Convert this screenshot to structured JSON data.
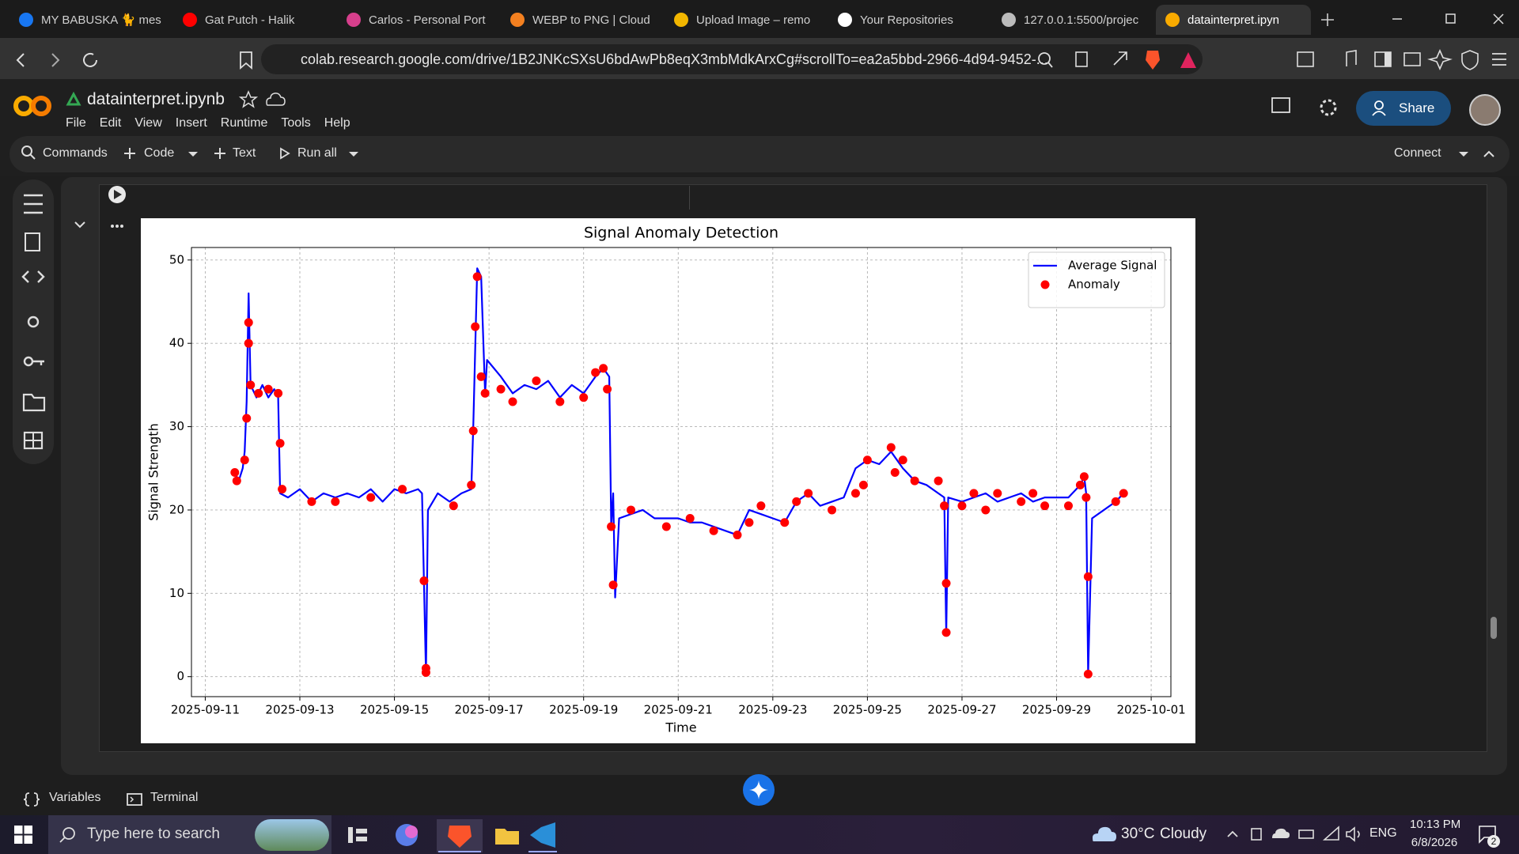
{
  "browser": {
    "tabs": [
      "MY BABUSKA 🐈 mes",
      "Gat Putch - Halik",
      "Carlos - Personal Port",
      "WEBP to PNG | Cloud",
      "Upload Image – remo",
      "Your Repositories",
      "127.0.0.1:5500/projec",
      "datainterpret.ipyn"
    ],
    "url": "colab.research.google.com/drive/1B2JNKcSXsU6bdAwPb8eqX3mbMdkArxCg#scrollTo=ea2a5bbd-2966-4d94-9452-..."
  },
  "notebook": {
    "title": "datainterpret.ipynb",
    "menus": [
      "File",
      "Edit",
      "View",
      "Insert",
      "Runtime",
      "Tools",
      "Help"
    ],
    "toolbar": {
      "commands": "Commands",
      "code": "Code",
      "text": "Text",
      "run_all": "Run all",
      "connect": "Connect"
    },
    "share": "Share",
    "bottom": {
      "variables": "Variables",
      "terminal": "Terminal"
    }
  },
  "taskbar": {
    "search": "Type here to search",
    "temperature": "30°C",
    "weather": "Cloudy",
    "language": "ENG",
    "time": "10:13 PM",
    "date": "6/8/2026",
    "notifications": "2"
  },
  "chart_data": {
    "type": "line",
    "title": "Signal Anomaly Detection",
    "xlabel": "Time",
    "ylabel": "Signal Strength",
    "xlim": [
      "2025-09-10T17:00",
      "2025-10-01T10:00"
    ],
    "xticks": [
      "2025-09-11",
      "2025-09-13",
      "2025-09-15",
      "2025-09-17",
      "2025-09-19",
      "2025-09-21",
      "2025-09-23",
      "2025-09-25",
      "2025-09-27",
      "2025-09-29",
      "2025-10-01"
    ],
    "ylim": [
      -2.4,
      51.5
    ],
    "yticks": [
      0,
      10,
      20,
      30,
      40,
      50
    ],
    "grid": true,
    "legend": "upper right",
    "series": [
      {
        "name": "Average Signal",
        "type": "line",
        "color": "#0000ff",
        "x": [
          "2025-09-11T15:00",
          "2025-09-11T17:00",
          "2025-09-11T19:00",
          "2025-09-11T20:00",
          "2025-09-11T21:00",
          "2025-09-11T22:00",
          "2025-09-11T23:00",
          "2025-09-12T02:00",
          "2025-09-12T05:00",
          "2025-09-12T08:00",
          "2025-09-12T11:00",
          "2025-09-12T13:00",
          "2025-09-12T14:00",
          "2025-09-12T18:00",
          "2025-09-13T00:00",
          "2025-09-13T06:00",
          "2025-09-13T12:00",
          "2025-09-13T18:00",
          "2025-09-14T00:00",
          "2025-09-14T06:00",
          "2025-09-14T12:00",
          "2025-09-14T18:00",
          "2025-09-15T00:00",
          "2025-09-15T06:00",
          "2025-09-15T12:00",
          "2025-09-15T14:00",
          "2025-09-15T16:00",
          "2025-09-15T17:00",
          "2025-09-15T22:00",
          "2025-09-16T04:00",
          "2025-09-16T10:00",
          "2025-09-16T15:00",
          "2025-09-16T16:00",
          "2025-09-16T18:00",
          "2025-09-16T20:00",
          "2025-09-16T22:00",
          "2025-09-16T23:00",
          "2025-09-17T06:00",
          "2025-09-17T12:00",
          "2025-09-17T18:00",
          "2025-09-18T00:00",
          "2025-09-18T06:00",
          "2025-09-18T12:00",
          "2025-09-18T18:00",
          "2025-09-19T00:00",
          "2025-09-19T06:00",
          "2025-09-19T10:00",
          "2025-09-19T13:00",
          "2025-09-19T14:00",
          "2025-09-19T15:00",
          "2025-09-19T16:00",
          "2025-09-19T18:00",
          "2025-09-20T00:00",
          "2025-09-20T06:00",
          "2025-09-20T12:00",
          "2025-09-20T18:00",
          "2025-09-21T00:00",
          "2025-09-21T06:00",
          "2025-09-21T12:00",
          "2025-09-21T18:00",
          "2025-09-22T00:00",
          "2025-09-22T06:00",
          "2025-09-22T12:00",
          "2025-09-22T18:00",
          "2025-09-23T00:00",
          "2025-09-23T06:00",
          "2025-09-23T12:00",
          "2025-09-23T18:00",
          "2025-09-24T00:00",
          "2025-09-24T06:00",
          "2025-09-24T12:00",
          "2025-09-24T18:00",
          "2025-09-25T00:00",
          "2025-09-25T06:00",
          "2025-09-25T12:00",
          "2025-09-25T18:00",
          "2025-09-26T00:00",
          "2025-09-26T06:00",
          "2025-09-26T12:00",
          "2025-09-26T15:00",
          "2025-09-26T16:00",
          "2025-09-26T17:00",
          "2025-09-27T00:00",
          "2025-09-27T06:00",
          "2025-09-27T12:00",
          "2025-09-27T18:00",
          "2025-09-28T00:00",
          "2025-09-28T06:00",
          "2025-09-28T12:00",
          "2025-09-28T18:00",
          "2025-09-29T00:00",
          "2025-09-29T06:00",
          "2025-09-29T12:00",
          "2025-09-29T14:00",
          "2025-09-29T15:00",
          "2025-09-29T16:00",
          "2025-09-29T18:00",
          "2025-09-30T00:00",
          "2025-09-30T06:00",
          "2025-09-30T10:00"
        ],
        "values": [
          24.5,
          23.5,
          25,
          27,
          33,
          46,
          35,
          33.5,
          35,
          33.5,
          34.5,
          33.5,
          22,
          21.5,
          22.5,
          21,
          22,
          21.5,
          22,
          21.5,
          22.5,
          21,
          22.5,
          22,
          22.5,
          22,
          0.3,
          20,
          22,
          21,
          22,
          22.5,
          30,
          49,
          48,
          34,
          38,
          36,
          34,
          35,
          34.5,
          35.5,
          33.5,
          35,
          34,
          36,
          37,
          36,
          18,
          22,
          9.5,
          19,
          19.5,
          20,
          19,
          19,
          19,
          18.5,
          18.5,
          18,
          17.5,
          17,
          20,
          19.5,
          19,
          18.5,
          21,
          22,
          20.5,
          21,
          21.5,
          25,
          26,
          25.5,
          27,
          25,
          23.5,
          23,
          22,
          21.5,
          5,
          21.5,
          21,
          21.5,
          22,
          21,
          21.5,
          22,
          21,
          21.5,
          21.5,
          21.5,
          23,
          24,
          22,
          0.3,
          19,
          20,
          21,
          22
        ]
      },
      {
        "name": "Anomaly",
        "type": "scatter",
        "color": "#ff0000",
        "x": [
          "2025-09-11T15:00",
          "2025-09-11T16:00",
          "2025-09-11T20:00",
          "2025-09-11T21:00",
          "2025-09-11T22:00",
          "2025-09-11T22:00",
          "2025-09-11T23:00",
          "2025-09-12T03:00",
          "2025-09-12T08:00",
          "2025-09-12T13:00",
          "2025-09-12T14:00",
          "2025-09-12T15:00",
          "2025-09-13T06:00",
          "2025-09-13T18:00",
          "2025-09-14T12:00",
          "2025-09-15T04:00",
          "2025-09-15T15:00",
          "2025-09-15T16:00",
          "2025-09-15T16:00",
          "2025-09-16T06:00",
          "2025-09-16T15:00",
          "2025-09-16T16:00",
          "2025-09-16T17:00",
          "2025-09-16T18:00",
          "2025-09-16T20:00",
          "2025-09-16T22:00",
          "2025-09-17T06:00",
          "2025-09-17T12:00",
          "2025-09-18T00:00",
          "2025-09-18T12:00",
          "2025-09-19T00:00",
          "2025-09-19T06:00",
          "2025-09-19T10:00",
          "2025-09-19T12:00",
          "2025-09-19T14:00",
          "2025-09-19T15:00",
          "2025-09-20T00:00",
          "2025-09-20T18:00",
          "2025-09-21T06:00",
          "2025-09-21T18:00",
          "2025-09-22T06:00",
          "2025-09-22T12:00",
          "2025-09-22T18:00",
          "2025-09-23T06:00",
          "2025-09-23T12:00",
          "2025-09-23T18:00",
          "2025-09-24T06:00",
          "2025-09-24T18:00",
          "2025-09-24T22:00",
          "2025-09-25T00:00",
          "2025-09-25T12:00",
          "2025-09-25T14:00",
          "2025-09-25T18:00",
          "2025-09-26T00:00",
          "2025-09-26T12:00",
          "2025-09-26T15:00",
          "2025-09-26T16:00",
          "2025-09-26T16:00",
          "2025-09-27T00:00",
          "2025-09-27T06:00",
          "2025-09-27T12:00",
          "2025-09-27T18:00",
          "2025-09-28T06:00",
          "2025-09-28T12:00",
          "2025-09-28T18:00",
          "2025-09-29T06:00",
          "2025-09-29T12:00",
          "2025-09-29T14:00",
          "2025-09-29T15:00",
          "2025-09-29T16:00",
          "2025-09-29T16:00",
          "2025-09-30T06:00",
          "2025-09-30T10:00"
        ],
        "values": [
          24.5,
          23.5,
          26,
          31,
          42.5,
          40,
          35,
          34,
          34.5,
          34,
          28,
          22.5,
          21,
          21,
          21.5,
          22.5,
          11.5,
          0.5,
          1,
          20.5,
          23,
          29.5,
          42,
          48,
          36,
          34,
          34.5,
          33,
          35.5,
          33,
          33.5,
          36.5,
          37,
          34.5,
          18,
          11,
          20,
          18,
          19,
          17.5,
          17,
          18.5,
          20.5,
          18.5,
          21,
          22,
          20,
          22,
          23,
          26,
          27.5,
          24.5,
          26,
          23.5,
          23.5,
          20.5,
          11.2,
          5.3,
          20.5,
          22,
          20,
          22,
          21,
          22,
          20.5,
          20.5,
          23,
          24,
          21.5,
          12,
          0.3,
          21,
          22
        ]
      }
    ]
  }
}
